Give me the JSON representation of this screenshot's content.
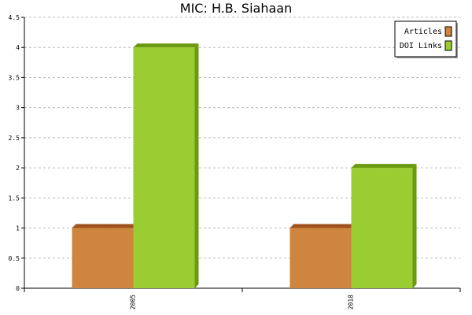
{
  "chart_data": {
    "type": "bar",
    "title": "MIC: H.B. Siahaan",
    "xlabel": "",
    "ylabel": "",
    "categories": [
      "2005",
      "2018"
    ],
    "series": [
      {
        "name": "Articles",
        "values": [
          1,
          1
        ],
        "color": "#cd853f",
        "side_color": "#a0521d",
        "top_color": "#a0521d"
      },
      {
        "name": "DOI Links",
        "values": [
          4,
          2
        ],
        "color": "#9acd32",
        "side_color": "#6b9a10",
        "top_color": "#6b9a10"
      }
    ],
    "ylim": [
      0,
      4.5
    ],
    "yticks": [
      "0",
      "0.5",
      "1",
      "1.5",
      "2",
      "2.5",
      "3",
      "3.5",
      "4",
      "4.5"
    ],
    "grid": "horizontal dashed",
    "legend_position": "top-right"
  }
}
